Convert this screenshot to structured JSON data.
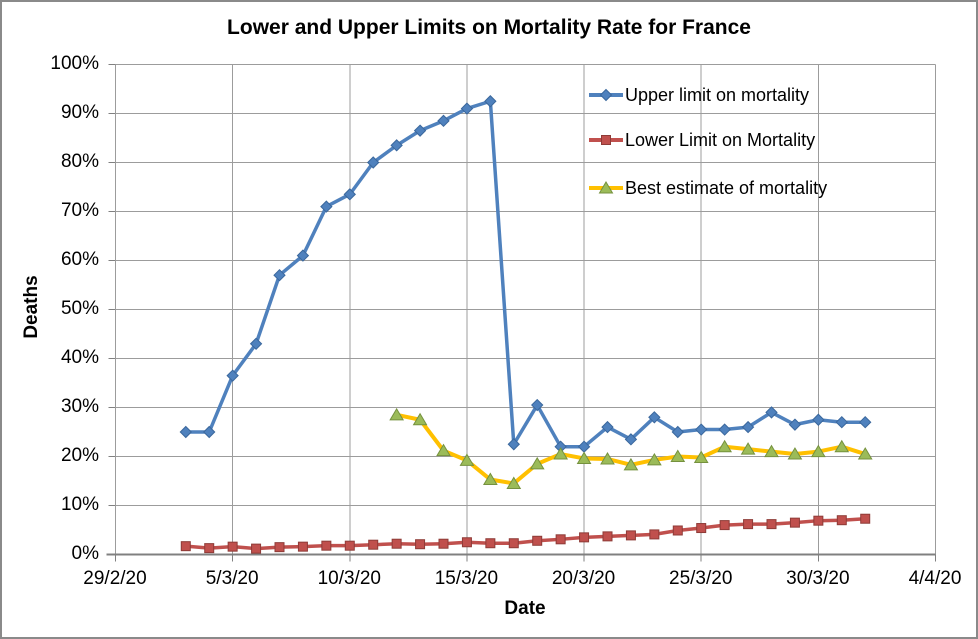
{
  "chart_data": {
    "type": "line",
    "title": "Lower and Upper Limits on Mortality Rate for France",
    "xlabel": "Date",
    "ylabel": "Deaths",
    "x_tick_labels": [
      "29/2/20",
      "5/3/20",
      "10/3/20",
      "15/3/20",
      "20/3/20",
      "25/3/20",
      "30/3/20",
      "4/4/20"
    ],
    "x_range_days": [
      0,
      35
    ],
    "ylim": [
      0,
      100
    ],
    "y_tick_step": 10,
    "y_tick_suffix": "%",
    "grid": true,
    "grid_color": "#9c9c9c",
    "axis_color": "#808080",
    "legend_position": "inside-top-right",
    "series": [
      {
        "name": "Upper limit on mortality",
        "color": "#4F81BD",
        "marker": "diamond",
        "marker_fill": "#4F81BD",
        "marker_edge": "#3A679C",
        "dates": [
          "3/3/20",
          "4/3/20",
          "5/3/20",
          "6/3/20",
          "7/3/20",
          "8/3/20",
          "9/3/20",
          "10/3/20",
          "11/3/20",
          "12/3/20",
          "13/3/20",
          "14/3/20",
          "15/3/20",
          "16/3/20",
          "17/3/20",
          "18/3/20",
          "19/3/20",
          "20/3/20",
          "21/3/20",
          "22/3/20",
          "23/3/20",
          "24/3/20",
          "25/3/20",
          "26/3/20",
          "27/3/20",
          "28/3/20",
          "29/3/20",
          "30/3/20",
          "31/3/20",
          "1/4/20"
        ],
        "values": [
          25,
          25,
          36.5,
          43,
          57,
          61,
          71,
          73.5,
          80,
          83.5,
          86.5,
          88.5,
          91,
          92.5,
          22.5,
          30.5,
          22,
          22,
          26,
          23.5,
          28,
          25,
          25.5,
          25.5,
          26,
          29,
          26.5,
          27.5,
          27,
          27
        ]
      },
      {
        "name": "Lower Limit on Mortality",
        "color": "#C0504D",
        "marker": "square",
        "marker_fill": "#C0504D",
        "marker_edge": "#8E3B37",
        "dates": [
          "3/3/20",
          "4/3/20",
          "5/3/20",
          "6/3/20",
          "7/3/20",
          "8/3/20",
          "9/3/20",
          "10/3/20",
          "11/3/20",
          "12/3/20",
          "13/3/20",
          "14/3/20",
          "15/3/20",
          "16/3/20",
          "17/3/20",
          "18/3/20",
          "19/3/20",
          "20/3/20",
          "21/3/20",
          "22/3/20",
          "23/3/20",
          "24/3/20",
          "25/3/20",
          "26/3/20",
          "27/3/20",
          "28/3/20",
          "29/3/20",
          "30/3/20",
          "31/3/20",
          "1/4/20"
        ],
        "values": [
          1.7,
          1.3,
          1.6,
          1.2,
          1.5,
          1.6,
          1.8,
          1.8,
          2.0,
          2.2,
          2.1,
          2.2,
          2.5,
          2.3,
          2.3,
          2.8,
          3.1,
          3.5,
          3.7,
          3.9,
          4.1,
          4.9,
          5.4,
          6.0,
          6.2,
          6.2,
          6.5,
          6.9,
          7.0,
          7.3
        ]
      },
      {
        "name": "Best estimate of mortality",
        "color": "#FFC000",
        "marker": "triangle",
        "marker_fill": "#9BBB59",
        "marker_edge": "#75913E",
        "dates": [
          "12/3/20",
          "13/3/20",
          "14/3/20",
          "15/3/20",
          "16/3/20",
          "17/3/20",
          "18/3/20",
          "19/3/20",
          "20/3/20",
          "21/3/20",
          "22/3/20",
          "23/3/20",
          "24/3/20",
          "25/3/20",
          "26/3/20",
          "27/3/20",
          "28/3/20",
          "29/3/20",
          "30/3/20",
          "31/3/20",
          "1/4/20"
        ],
        "values": [
          28.5,
          27.5,
          21.2,
          19.2,
          15.3,
          14.5,
          18.5,
          20.5,
          19.6,
          19.5,
          18.3,
          19.3,
          20.0,
          19.8,
          22.0,
          21.5,
          21.0,
          20.5,
          21.0,
          22.0,
          20.5
        ]
      }
    ]
  }
}
